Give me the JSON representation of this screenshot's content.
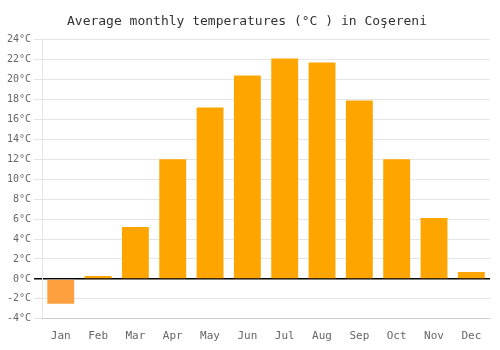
{
  "chart_data": {
    "type": "bar",
    "title": "Average monthly temperatures (°C ) in Coşereni",
    "categories": [
      "Jan",
      "Feb",
      "Mar",
      "Apr",
      "May",
      "Jun",
      "Jul",
      "Aug",
      "Sep",
      "Oct",
      "Nov",
      "Dec"
    ],
    "values": [
      -2.5,
      0.3,
      5.2,
      12.0,
      17.2,
      20.4,
      22.1,
      21.7,
      17.9,
      12.0,
      6.1,
      0.7
    ],
    "colors": [
      "#FFA040",
      "#FFA500",
      "#FFA500",
      "#FFA500",
      "#FFA500",
      "#FFA500",
      "#FFA500",
      "#FFA500",
      "#FFA500",
      "#FFA500",
      "#FFA500",
      "#FFA500"
    ],
    "ylim": [
      -4,
      24
    ],
    "yticks": [
      {
        "value": -4,
        "label": "-4°C"
      },
      {
        "value": -2,
        "label": "-2°C"
      },
      {
        "value": 0,
        "label": "0°C"
      },
      {
        "value": 2,
        "label": "2°C"
      },
      {
        "value": 4,
        "label": "4°C"
      },
      {
        "value": 6,
        "label": "6°C"
      },
      {
        "value": 8,
        "label": "8°C"
      },
      {
        "value": 10,
        "label": "10°C"
      },
      {
        "value": 12,
        "label": "12°C"
      },
      {
        "value": 14,
        "label": "14°C"
      },
      {
        "value": 16,
        "label": "16°C"
      },
      {
        "value": 18,
        "label": "18°C"
      },
      {
        "value": 20,
        "label": "20°C"
      },
      {
        "value": 22,
        "label": "22°C"
      },
      {
        "value": 24,
        "label": "24°C"
      }
    ],
    "grid": true
  }
}
